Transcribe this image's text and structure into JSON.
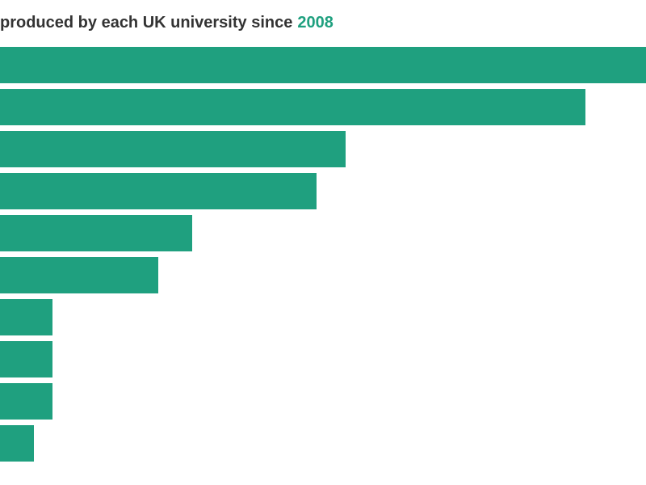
{
  "chart_data": {
    "type": "bar",
    "orientation": "horizontal",
    "title": "produced by each UK university since",
    "title_highlight": "2008",
    "categories": [
      null,
      null,
      null,
      null,
      null,
      null,
      null,
      null,
      null,
      null
    ],
    "values": [
      800,
      725,
      428,
      392,
      238,
      196,
      65,
      65,
      65,
      42
    ],
    "color": "#1fa07f",
    "xlim": [
      0,
      800
    ]
  }
}
